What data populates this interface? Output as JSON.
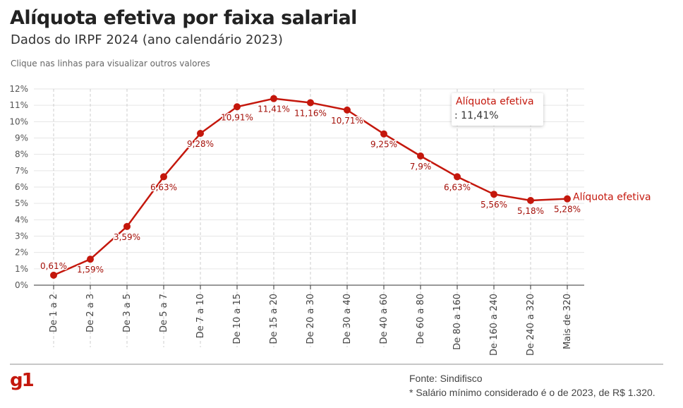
{
  "header": {
    "title": "Alíquota efetiva por faixa salarial",
    "subtitle": "Dados do IRPF 2024 (ano calendário 2023)",
    "hint": "Clique nas linhas para visualizar outros valores"
  },
  "chart_data": {
    "type": "line",
    "categories": [
      "De 1 a 2",
      "De 2 a 3",
      "De 3 a 5",
      "De 5 a 7",
      "De 7 a 10",
      "De 10 a 15",
      "De 15 a 20",
      "De 20 a 30",
      "De 30 a 40",
      "De 40 a 60",
      "De 60 a 80",
      "De 80 a 160",
      "De 160 a 240",
      "De 240 a 320",
      "Mais de 320"
    ],
    "series": [
      {
        "name": "Alíquota efetiva",
        "values": [
          0.61,
          1.59,
          3.59,
          6.63,
          9.28,
          10.91,
          11.41,
          11.16,
          10.71,
          9.25,
          7.9,
          6.63,
          5.56,
          5.18,
          5.28
        ],
        "labels": [
          "0,61%",
          "1,59%",
          "3,59%",
          "6,63%",
          "9,28%",
          "10,91%",
          "11,41%",
          "11,16%",
          "10,71%",
          "9,25%",
          "7,9%",
          "6,63%",
          "5,56%",
          "5,18%",
          "5,28%"
        ]
      }
    ],
    "yticks": [
      "0%",
      "1%",
      "2%",
      "3%",
      "4%",
      "5%",
      "6%",
      "7%",
      "8%",
      "9%",
      "10%",
      "11%",
      "12%"
    ],
    "ylim": [
      0,
      12
    ],
    "grid": true,
    "color": "#c4170c",
    "tooltip": {
      "series": "Alíquota efetiva",
      "value": ": 11,41%"
    }
  },
  "footer": {
    "logo": "g1",
    "source": "Fonte: Sindifisco",
    "note": "* Salário mínimo considerado é o de 2023, de R$ 1.320."
  }
}
